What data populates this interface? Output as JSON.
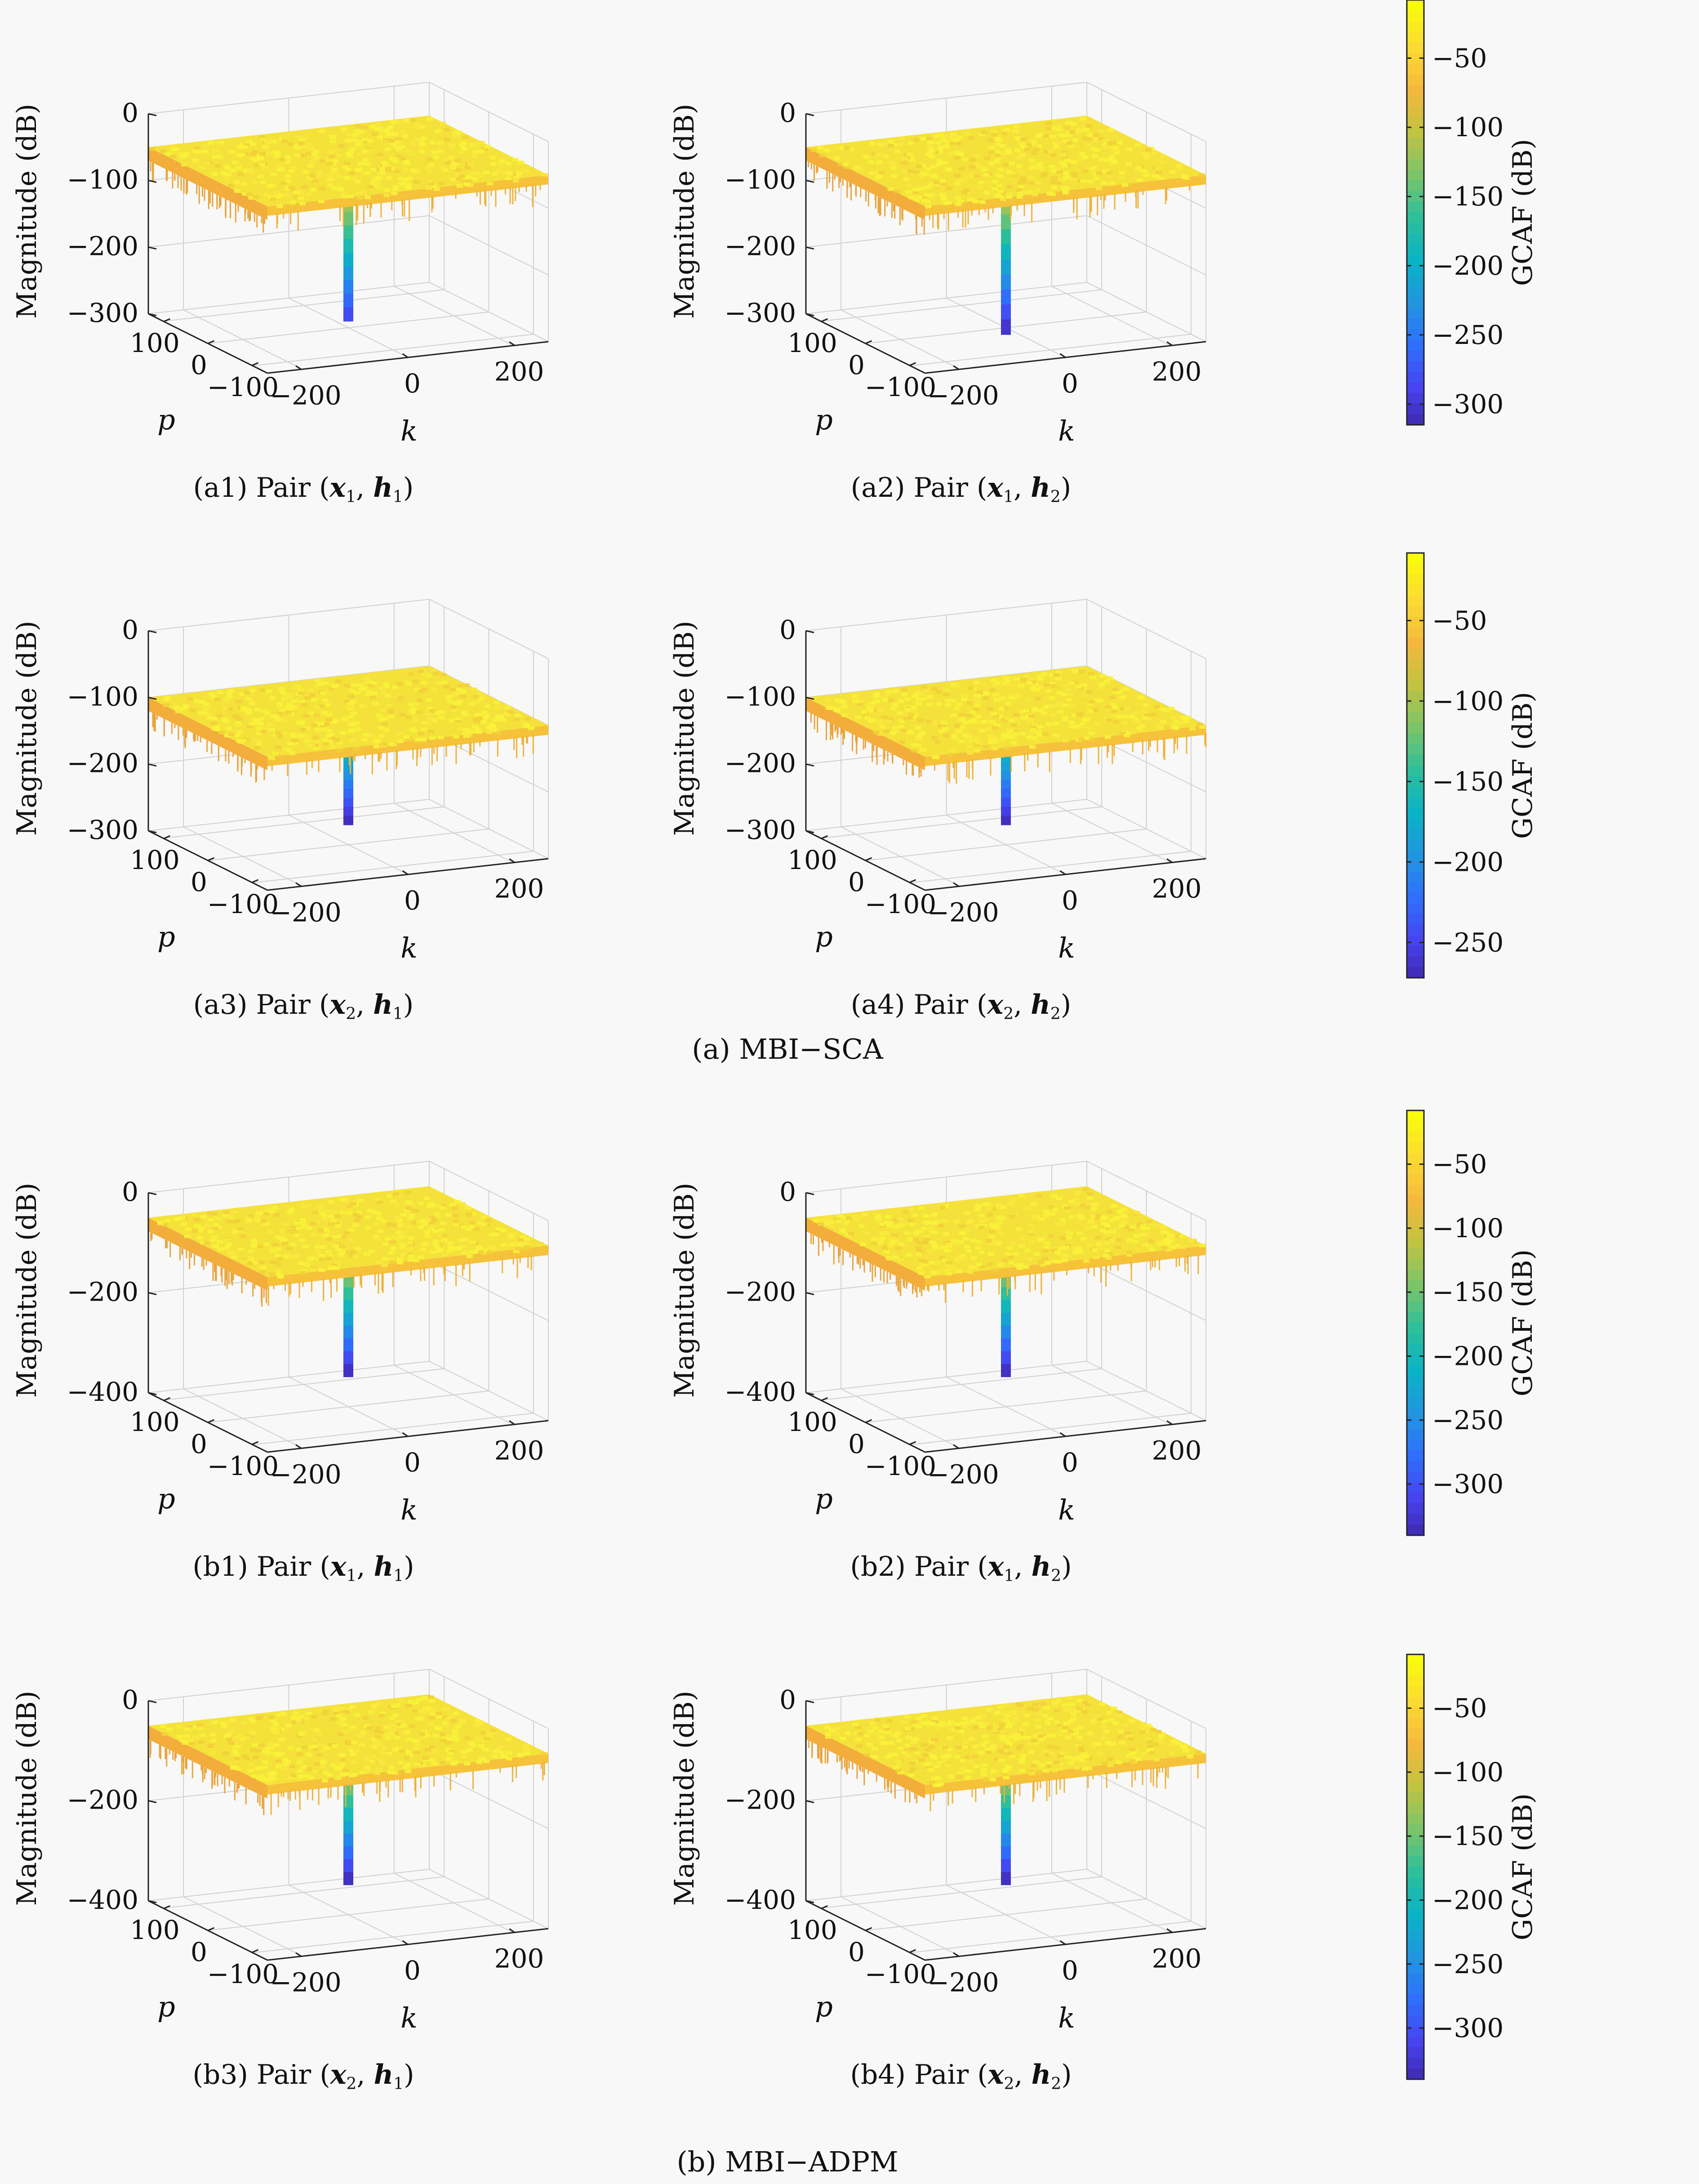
{
  "figure": {
    "group_captions": [
      "(a) MBI-SCA",
      "(b) MBI-ADPM"
    ]
  },
  "colors": {
    "background": "#f8f8f8",
    "colormap": [
      "#3e26a8",
      "#4743f0",
      "#2f6ffc",
      "#2195e0",
      "#0ab3c6",
      "#2ebf9b",
      "#7ac46a",
      "#c1c342",
      "#f4b83d",
      "#fbdb33",
      "#f9fb0e"
    ],
    "grid": "#d0d0d0"
  },
  "chart_data": [
    {
      "type": "surface3d",
      "id": "a1",
      "row": 0,
      "col": 0,
      "caption": "(a1) Pair (x1, h1)",
      "caption_parts": {
        "prefix": "(a1) Pair (",
        "x": "x",
        "xsub": "1",
        "h": "h",
        "hsub": "1"
      },
      "xlabel": "k",
      "ylabel": "p",
      "zlabel": "Magnitude (dB)",
      "xticks": [
        "-200",
        "0",
        "200"
      ],
      "yticks": [
        "100",
        "0",
        "-100"
      ],
      "zticks": [
        "0",
        "-100",
        "-200",
        "-300"
      ],
      "zlim": [
        -300,
        0
      ],
      "plateau_db": -50,
      "spike_db": -290
    },
    {
      "type": "surface3d",
      "id": "a2",
      "row": 0,
      "col": 1,
      "caption": "(a2) Pair (x1, h2)",
      "caption_parts": {
        "prefix": "(a2) Pair (",
        "x": "x",
        "xsub": "1",
        "h": "h",
        "hsub": "2"
      },
      "xlabel": "k",
      "ylabel": "p",
      "zlabel": "Magnitude (dB)",
      "xticks": [
        "-200",
        "0",
        "200"
      ],
      "yticks": [
        "100",
        "0",
        "-100"
      ],
      "zticks": [
        "0",
        "-100",
        "-200",
        "-300"
      ],
      "zlim": [
        -300,
        0
      ],
      "plateau_db": -50,
      "spike_db": -310
    },
    {
      "type": "surface3d",
      "id": "a3",
      "row": 1,
      "col": 0,
      "caption": "(a3) Pair (x2, h1)",
      "caption_parts": {
        "prefix": "(a3) Pair (",
        "x": "x",
        "xsub": "2",
        "h": "h",
        "hsub": "1"
      },
      "xlabel": "k",
      "ylabel": "p",
      "zlabel": "Magnitude (dB)",
      "xticks": [
        "-200",
        "0",
        "200"
      ],
      "yticks": [
        "100",
        "0",
        "-100"
      ],
      "zticks": [
        "0",
        "-100",
        "-200",
        "-300"
      ],
      "zlim": [
        -300,
        0
      ],
      "plateau_db": -100,
      "spike_db": -270
    },
    {
      "type": "surface3d",
      "id": "a4",
      "row": 1,
      "col": 1,
      "caption": "(a4) Pair (x2, h2)",
      "caption_parts": {
        "prefix": "(a4) Pair (",
        "x": "x",
        "xsub": "2",
        "h": "h",
        "hsub": "2"
      },
      "xlabel": "k",
      "ylabel": "p",
      "zlabel": "Magnitude (dB)",
      "xticks": [
        "-200",
        "0",
        "200"
      ],
      "yticks": [
        "100",
        "0",
        "-100"
      ],
      "zticks": [
        "0",
        "-100",
        "-200",
        "-300"
      ],
      "zlim": [
        -300,
        0
      ],
      "plateau_db": -100,
      "spike_db": -270
    },
    {
      "type": "surface3d",
      "id": "b1",
      "row": 2,
      "col": 0,
      "caption": "(b1) Pair (x1, h1)",
      "caption_parts": {
        "prefix": "(b1) Pair (",
        "x": "x",
        "xsub": "1",
        "h": "h",
        "hsub": "1"
      },
      "xlabel": "k",
      "ylabel": "p",
      "zlabel": "Magnitude (dB)",
      "xticks": [
        "-200",
        "0",
        "200"
      ],
      "yticks": [
        "100",
        "0",
        "-100"
      ],
      "zticks": [
        "0",
        "-200",
        "-400"
      ],
      "zlim": [
        -400,
        0
      ],
      "plateau_db": -50,
      "spike_db": -340
    },
    {
      "type": "surface3d",
      "id": "b2",
      "row": 2,
      "col": 1,
      "caption": "(b2) Pair (x1, h2)",
      "caption_parts": {
        "prefix": "(b2) Pair (",
        "x": "x",
        "xsub": "1",
        "h": "h",
        "hsub": "2"
      },
      "xlabel": "k",
      "ylabel": "p",
      "zlabel": "Magnitude (dB)",
      "xticks": [
        "-200",
        "0",
        "200"
      ],
      "yticks": [
        "100",
        "0",
        "-100"
      ],
      "zticks": [
        "0",
        "-200",
        "-400"
      ],
      "zlim": [
        -400,
        0
      ],
      "plateau_db": -50,
      "spike_db": -340
    },
    {
      "type": "surface3d",
      "id": "b3",
      "row": 3,
      "col": 0,
      "caption": "(b3) Pair (x2, h1)",
      "caption_parts": {
        "prefix": "(b3) Pair (",
        "x": "x",
        "xsub": "2",
        "h": "h",
        "hsub": "1"
      },
      "xlabel": "k",
      "ylabel": "p",
      "zlabel": "Magnitude (dB)",
      "xticks": [
        "-200",
        "0",
        "200"
      ],
      "yticks": [
        "100",
        "0",
        "-100"
      ],
      "zticks": [
        "0",
        "-200",
        "-400"
      ],
      "zlim": [
        -400,
        0
      ],
      "plateau_db": -50,
      "spike_db": -340
    },
    {
      "type": "surface3d",
      "id": "b4",
      "row": 3,
      "col": 1,
      "caption": "(b4) Pair (x2, h2)",
      "caption_parts": {
        "prefix": "(b4) Pair (",
        "x": "x",
        "xsub": "2",
        "h": "h",
        "hsub": "2"
      },
      "xlabel": "k",
      "ylabel": "p",
      "zlabel": "Magnitude (dB)",
      "xticks": [
        "-200",
        "0",
        "200"
      ],
      "yticks": [
        "100",
        "0",
        "-100"
      ],
      "zticks": [
        "0",
        "-200",
        "-400"
      ],
      "zlim": [
        -400,
        0
      ],
      "plateau_db": -50,
      "spike_db": -340
    }
  ],
  "colorbars": [
    {
      "label": "GCAF (dB)",
      "ticks": [
        "-50",
        "-100",
        "-150",
        "-200",
        "-250",
        "-300"
      ],
      "clim": [
        -315,
        -8
      ]
    },
    {
      "label": "GCAF (dB)",
      "ticks": [
        "-50",
        "-100",
        "-150",
        "-200",
        "-250"
      ],
      "clim": [
        -272,
        -8
      ]
    },
    {
      "label": "GCAF (dB)",
      "ticks": [
        "-50",
        "-100",
        "-150",
        "-200",
        "-250",
        "-300"
      ],
      "clim": [
        -340,
        -8
      ]
    },
    {
      "label": "GCAF (dB)",
      "ticks": [
        "-50",
        "-100",
        "-150",
        "-200",
        "-250",
        "-300"
      ],
      "clim": [
        -340,
        -8
      ]
    }
  ]
}
